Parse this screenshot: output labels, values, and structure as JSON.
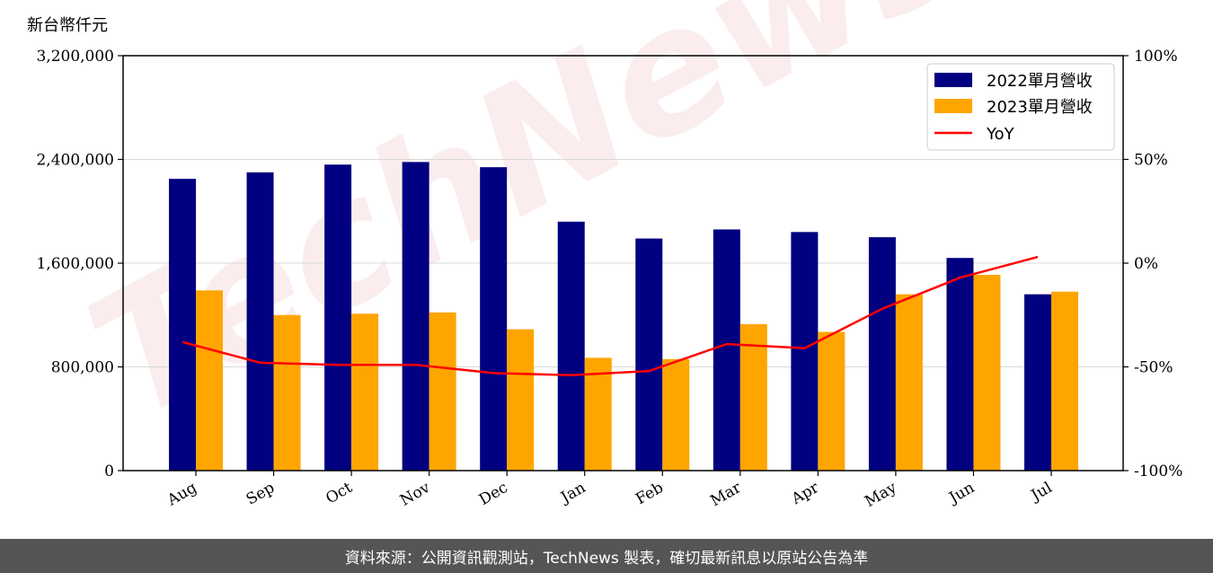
{
  "chart_data": {
    "type": "bar",
    "ylabel": "新台幣仟元",
    "categories": [
      "Aug",
      "Sep",
      "Oct",
      "Nov",
      "Dec",
      "Jan",
      "Feb",
      "Mar",
      "Apr",
      "May",
      "Jun",
      "Jul"
    ],
    "series": [
      {
        "name": "2022單月營收",
        "type": "bar",
        "color": "#000080",
        "values": [
          2250000,
          2300000,
          2360000,
          2380000,
          2340000,
          1920000,
          1790000,
          1860000,
          1840000,
          1800000,
          1640000,
          1360000
        ]
      },
      {
        "name": "2023單月營收",
        "type": "bar",
        "color": "#FFA500",
        "values": [
          1390000,
          1200000,
          1210000,
          1220000,
          1090000,
          870000,
          860000,
          1130000,
          1070000,
          1360000,
          1510000,
          1380000
        ]
      },
      {
        "name": "YoY",
        "type": "line",
        "axis": "right",
        "color": "#FF0000",
        "values": [
          -38,
          -48,
          -49,
          -49,
          -53,
          -54,
          -52,
          -39,
          -41,
          -22,
          -7,
          3
        ]
      }
    ],
    "ylim": [
      0,
      3200000
    ],
    "y_ticks": [
      "0",
      "800,000",
      "1,600,000",
      "2,400,000",
      "3,200,000"
    ],
    "y2lim": [
      -100,
      100
    ],
    "y2_ticks": [
      "-100%",
      "-50%",
      "0%",
      "50%",
      "100%"
    ],
    "grid": true,
    "legend": "top-right",
    "watermark": "TechNews"
  },
  "footer": {
    "text": "資料來源：公開資訊觀測站，TechNews 製表，確切最新訊息以原站公告為準"
  }
}
